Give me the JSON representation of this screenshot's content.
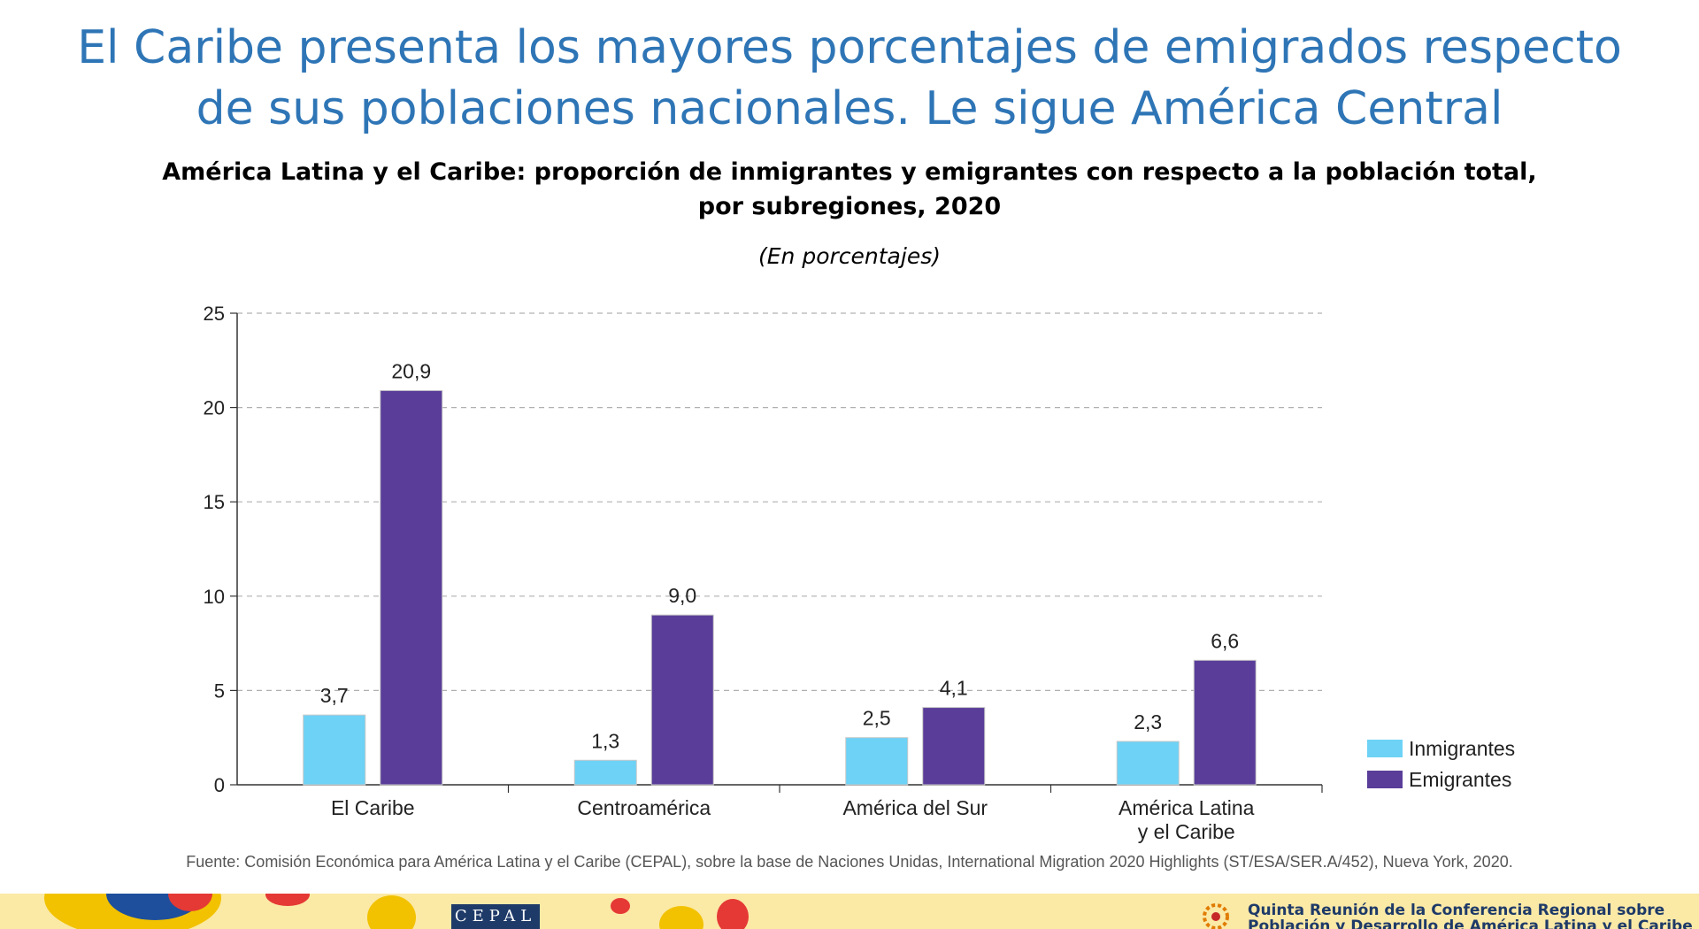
{
  "slide": {
    "title_lines": [
      "El Caribe presenta los mayores porcentajes de emigrados respecto",
      "de sus poblaciones nacionales. Le sigue América Central"
    ]
  },
  "chart_data": {
    "type": "bar",
    "title_lines": [
      "América Latina y el Caribe: proporción de inmigrantes y emigrantes con respecto a la población total,",
      "por subregiones, 2020"
    ],
    "subtitle": "(En porcentajes)",
    "categories": [
      [
        "El Caribe"
      ],
      [
        "Centroamérica"
      ],
      [
        "América del Sur"
      ],
      [
        "América Latina",
        "y el Caribe"
      ]
    ],
    "series": [
      {
        "name": "Inmigrantes",
        "color": "#6dd2f6",
        "values": [
          3.7,
          1.3,
          2.5,
          2.3
        ],
        "labels": [
          "3,7",
          "1,3",
          "2,5",
          "2,3"
        ]
      },
      {
        "name": "Emigrantes",
        "color": "#5a3d99",
        "values": [
          20.9,
          9.0,
          4.1,
          6.6
        ],
        "labels": [
          "20,9",
          "9,0",
          "4,1",
          "6,6"
        ]
      }
    ],
    "ylim": [
      0,
      25
    ],
    "yticks": [
      0,
      5,
      10,
      15,
      20,
      25
    ],
    "grid": true,
    "legend": "right"
  },
  "source": "Fuente: Comisión Económica para América Latina y el Caribe (CEPAL), sobre la base de Naciones Unidas, International Migration 2020 Highlights (ST/ESA/SER.A/452), Nueva York, 2020.",
  "footer": {
    "logo_text": "CEPAL",
    "conference_lines": [
      "Quinta Reunión de la Conferencia Regional sobre",
      "Población y Desarrollo de América Latina y el Caribe"
    ]
  }
}
